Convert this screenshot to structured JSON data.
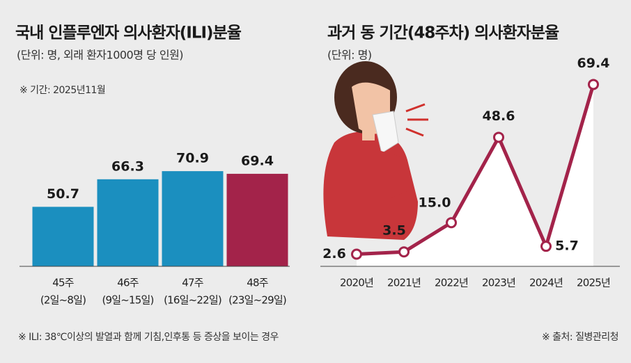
{
  "chart_data": [
    {
      "type": "bar",
      "title": "국내 인플루엔자 의사환자(ILI)분율",
      "subtitle": "(단위: 명, 외래 환자1000명 당 인원)",
      "note": "※ 기간: 2025년11월",
      "categories": [
        "45주",
        "46주",
        "47주",
        "48주"
      ],
      "category_ranges": [
        "(2일~8일)",
        "(9일~15일)",
        "(16일~22일)",
        "(23일~29일)"
      ],
      "values": [
        50.7,
        66.3,
        70.9,
        69.4
      ],
      "colors": [
        "#1b8fbf",
        "#1b8fbf",
        "#1b8fbf",
        "#a3234a"
      ],
      "ylim": [
        17,
        75
      ]
    },
    {
      "type": "line",
      "title": "과거 동 기간(48주차) 의사환자분율",
      "subtitle": "(단위: 명)",
      "categories": [
        "2020년",
        "2021년",
        "2022년",
        "2023년",
        "2024년",
        "2025년"
      ],
      "values": [
        2.6,
        3.5,
        15.0,
        48.6,
        5.7,
        69.4
      ],
      "value_labels": [
        "2.6",
        "3.5",
        "15.0",
        "48.6",
        "5.7",
        "69.4"
      ],
      "color": "#a3234a",
      "ylim": [
        0,
        75
      ]
    }
  ],
  "footnote": "※ ILI: 38℃이상의 발열과 함께 기침,인후통 등 증상을 보이는 경우",
  "source": "※ 출처: 질병관리청"
}
